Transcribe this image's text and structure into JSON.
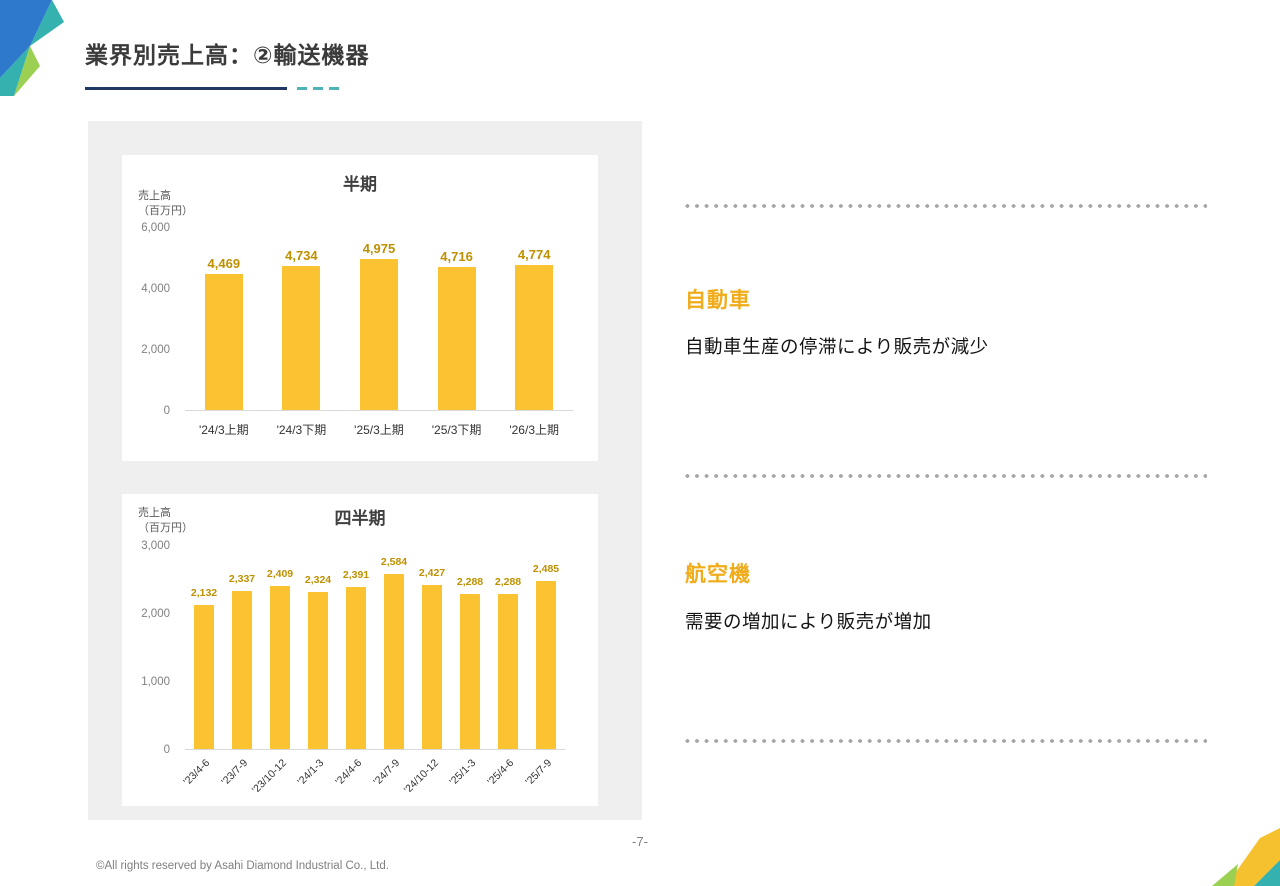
{
  "slide": {
    "title": "業界別売上高：②輸送機器",
    "page_number": "-7-",
    "copyright": "©All rights reserved by Asahi Diamond Industrial Co., Ltd."
  },
  "sections": [
    {
      "heading": "自動車",
      "body": "自動車生産の停滞により販売が減少"
    },
    {
      "heading": "航空機",
      "body": "需要の増加により販売が増加"
    }
  ],
  "chart_data": [
    {
      "type": "bar",
      "title": "半期",
      "ylabel": "売上高\n（百万円）",
      "categories": [
        "'24/3上期",
        "'24/3下期",
        "'25/3上期",
        "'25/3下期",
        "'26/3上期"
      ],
      "values": [
        4469,
        4734,
        4975,
        4716,
        4774
      ],
      "value_labels": [
        "4,469",
        "4,734",
        "4,975",
        "4,716",
        "4,774"
      ],
      "ylim": [
        0,
        6000
      ],
      "yticks": [
        0,
        2000,
        4000,
        6000
      ],
      "ytick_labels": [
        "0",
        "2,000",
        "4,000",
        "6,000"
      ],
      "bar_color": "#FBC332",
      "value_label_color": "#BF9000",
      "grid": false,
      "legend": "none",
      "rotated_x_labels": false
    },
    {
      "type": "bar",
      "title": "四半期",
      "ylabel": "売上高\n（百万円）",
      "categories": [
        "'23/4-6",
        "'23/7-9",
        "'23/10-12",
        "'24/1-3",
        "'24/4-6",
        "'24/7-9",
        "'24/10-12",
        "'25/1-3",
        "'25/4-6",
        "'25/7-9"
      ],
      "values": [
        2132,
        2337,
        2409,
        2324,
        2391,
        2584,
        2427,
        2288,
        2288,
        2485
      ],
      "value_labels": [
        "2,132",
        "2,337",
        "2,409",
        "2,324",
        "2,391",
        "2,584",
        "2,427",
        "2,288",
        "2,288",
        "2,485"
      ],
      "ylim": [
        0,
        3000
      ],
      "yticks": [
        0,
        1000,
        2000,
        3000
      ],
      "ytick_labels": [
        "0",
        "1,000",
        "2,000",
        "3,000"
      ],
      "bar_color": "#FBC332",
      "value_label_color": "#BF9000",
      "grid": false,
      "legend": "none",
      "rotated_x_labels": true
    }
  ],
  "colors": {
    "bar_yellow": "#FBC332",
    "value_label_gold": "#BF9000",
    "heading_orange": "#F0AC1B",
    "title_gray": "#3B3B3B",
    "underline_navy": "#1F3864",
    "underline_teal": "#4FB3B5",
    "panel_gray": "#EFEFEF",
    "divider_gray": "#A6A6A6"
  }
}
